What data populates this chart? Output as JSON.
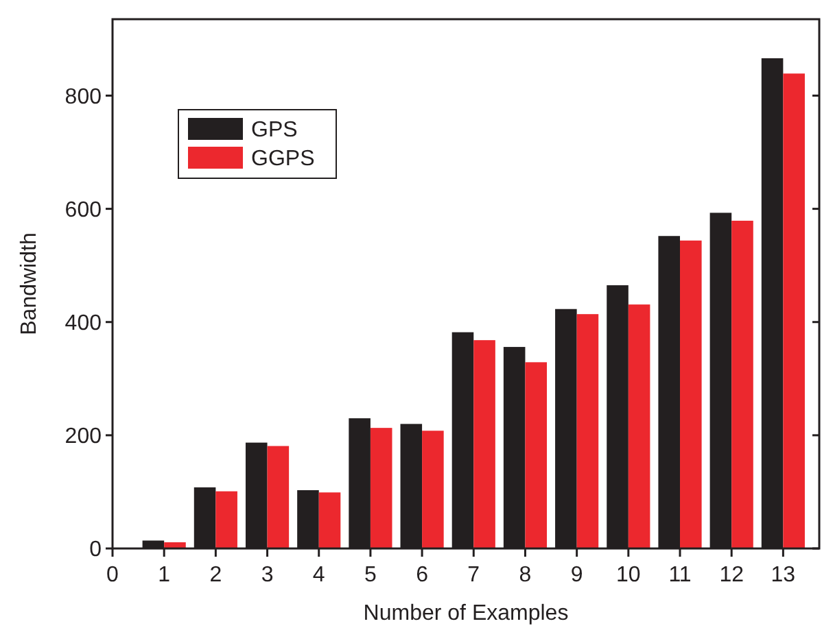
{
  "chart_data": {
    "type": "bar",
    "xlabel": "Number of Examples",
    "ylabel": "Bandwidth",
    "x": [
      1,
      2,
      3,
      4,
      5,
      6,
      7,
      8,
      9,
      10,
      11,
      12,
      13
    ],
    "series": [
      {
        "name": "GPS",
        "color": "#231f20",
        "values": [
          14,
          108,
          187,
          103,
          230,
          220,
          382,
          356,
          423,
          465,
          552,
          593,
          866
        ]
      },
      {
        "name": "GGPS",
        "color": "#ec282e",
        "values": [
          11,
          101,
          181,
          99,
          213,
          208,
          368,
          329,
          414,
          431,
          544,
          579,
          839
        ]
      }
    ],
    "xlim": [
      0,
      13.7
    ],
    "xticks": [
      0,
      1,
      2,
      3,
      4,
      5,
      6,
      7,
      8,
      9,
      10,
      11,
      12,
      13
    ],
    "ylim": [
      0,
      935
    ],
    "yticks": [
      0,
      200,
      400,
      600,
      800
    ],
    "grid": false,
    "legend": "top left"
  }
}
